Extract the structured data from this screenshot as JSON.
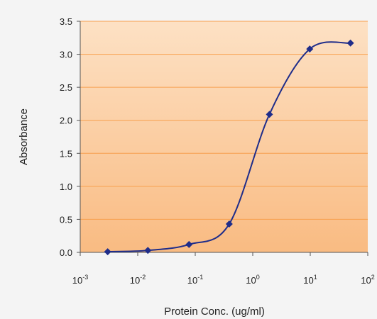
{
  "chart_data": {
    "type": "line",
    "title": "",
    "xlabel": "Protein Conc. (ug/ml)",
    "ylabel": "Absorbance",
    "x_scale": "log",
    "xlim": [
      0.001,
      100
    ],
    "ylim": [
      0,
      3.5
    ],
    "x_ticks": [
      {
        "base": "10",
        "exp": "-3"
      },
      {
        "base": "10",
        "exp": "-2"
      },
      {
        "base": "10",
        "exp": "-1"
      },
      {
        "base": "10",
        "exp": "0"
      },
      {
        "base": "10",
        "exp": "1"
      },
      {
        "base": "10",
        "exp": "2"
      }
    ],
    "y_ticks": [
      "0.0",
      "0.5",
      "1.0",
      "1.5",
      "2.0",
      "2.5",
      "3.0",
      "3.5"
    ],
    "grid": "horizontal",
    "legend": "none",
    "series": [
      {
        "x": [
          0.003,
          0.015,
          0.078,
          0.39,
          1.95,
          9.8,
          50
        ],
        "y": [
          0.01,
          0.03,
          0.12,
          0.43,
          2.09,
          3.08,
          3.17
        ]
      }
    ],
    "colors": {
      "plot_bg_top": "#fde1c4",
      "plot_bg_bottom": "#f9bb82",
      "grid": "#f7a04f",
      "line": "#1f2d8a",
      "marker": "#1f2d8a"
    }
  }
}
